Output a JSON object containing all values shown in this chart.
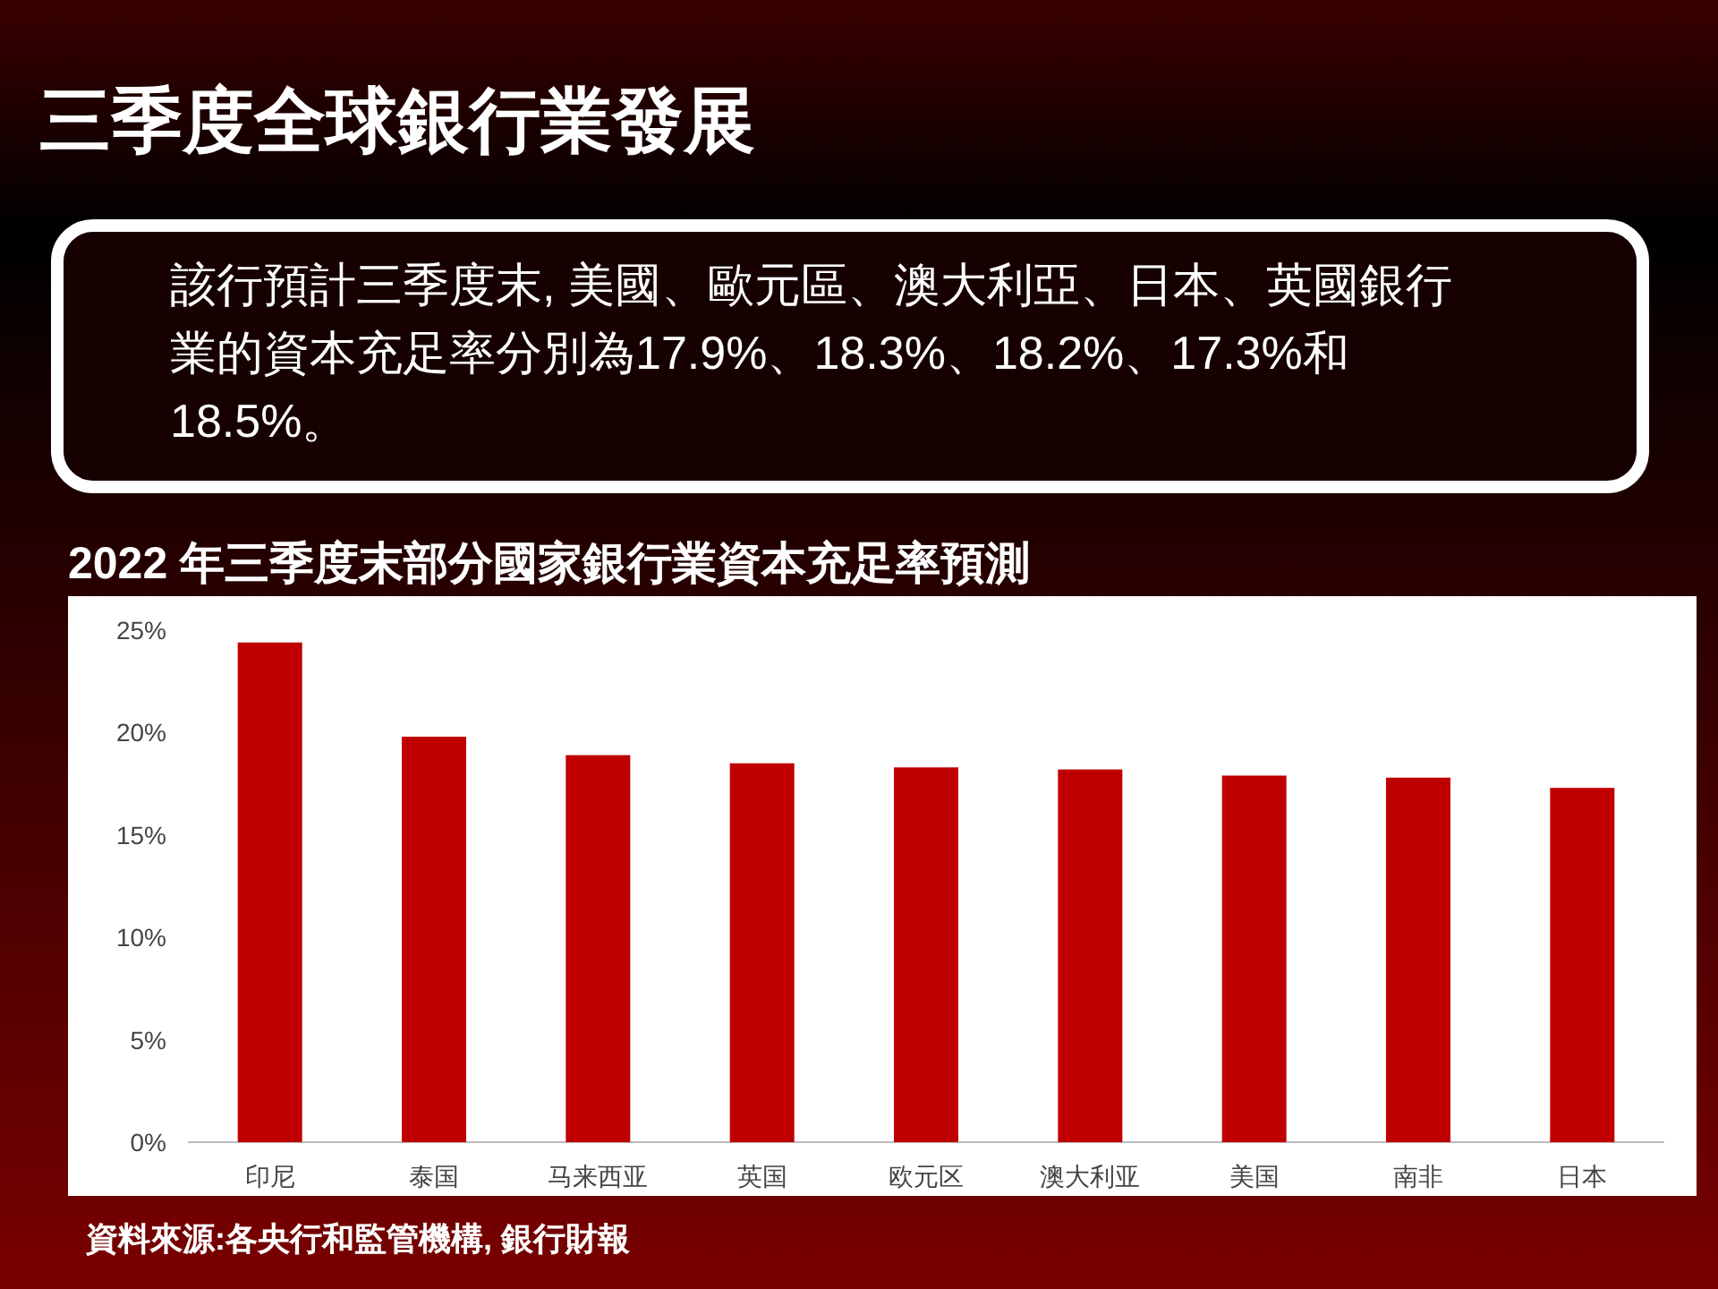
{
  "chart_data": {
    "type": "bar",
    "title": "三季度全球銀行業發展",
    "subtitle": "該行預計三季度末, 美國、歐元區、澳大利亞、日本、英國銀行業的資本充足率分別為17.9%、18.3%、18.2%、17.3%和18.5%。",
    "annotations": [
      "2022 年三季度末部分國家銀行業資本充足率預測",
      "資料來源:各央行和監管機構, 銀行財報"
    ],
    "categories": [
      "印尼",
      "泰国",
      "马来西亚",
      "英国",
      "欧元区",
      "澳大利亚",
      "美国",
      "南非",
      "日本"
    ],
    "values": [
      24.4,
      19.8,
      18.9,
      18.5,
      18.3,
      18.2,
      17.9,
      17.8,
      17.3
    ],
    "color": "#c00000",
    "ylim": [
      0,
      25
    ],
    "yticks": [
      {
        "value": 0,
        "label": "0%"
      },
      {
        "value": 5,
        "label": "5%"
      },
      {
        "value": 10,
        "label": "10%"
      },
      {
        "value": 15,
        "label": "15%"
      },
      {
        "value": 20,
        "label": "20%"
      },
      {
        "value": 25,
        "label": "25%"
      }
    ],
    "grid": false
  }
}
